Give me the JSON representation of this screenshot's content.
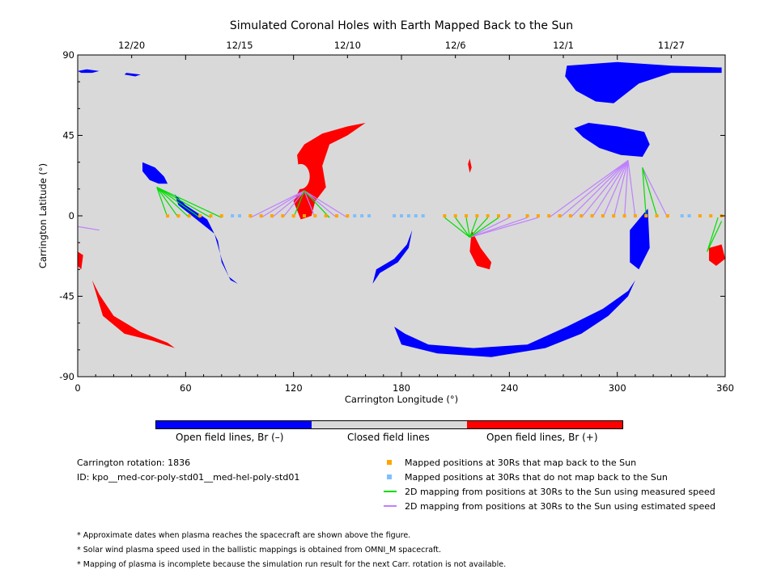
{
  "chart_data": {
    "type": "map",
    "title": "Simulated Coronal Holes with Earth Mapped Back to the Sun",
    "xlabel": "Carrington Longitude (°)",
    "ylabel": "Carrington Latitude (°)",
    "xlim": [
      0,
      360
    ],
    "ylim": [
      -90,
      90
    ],
    "x_ticks": [
      0,
      60,
      120,
      180,
      240,
      300,
      360
    ],
    "y_ticks": [
      -90,
      -45,
      0,
      45,
      90
    ],
    "date_ticks": [
      {
        "label": "12/20",
        "lon": 30
      },
      {
        "label": "12/15",
        "lon": 90
      },
      {
        "label": "12/10",
        "lon": 150
      },
      {
        "label": "12/6",
        "lon": 210
      },
      {
        "label": "12/1",
        "lon": 270
      },
      {
        "label": "11/27",
        "lon": 330
      }
    ],
    "background_color": "#d9d9d9",
    "colors": {
      "negative": "#0000ff",
      "closed": "#d9d9d9",
      "positive": "#ff0000",
      "mapped": "#ffa500",
      "unmapped": "#7fbfff",
      "measured": "#00dd00",
      "estimated": "#bf80ff"
    },
    "coronal_holes": [
      {
        "polarity": "negative",
        "points": [
          [
            272,
            84
          ],
          [
            300,
            86
          ],
          [
            330,
            84
          ],
          [
            358,
            83
          ],
          [
            358,
            80
          ],
          [
            330,
            80
          ],
          [
            312,
            74
          ],
          [
            298,
            63
          ],
          [
            288,
            64
          ],
          [
            277,
            70
          ],
          [
            271,
            78
          ]
        ]
      },
      {
        "polarity": "negative",
        "points": [
          [
            0,
            81
          ],
          [
            5,
            82
          ],
          [
            12,
            81
          ],
          [
            8,
            80
          ],
          [
            2,
            80
          ]
        ]
      },
      {
        "polarity": "negative",
        "points": [
          [
            27,
            80
          ],
          [
            35,
            79
          ],
          [
            32,
            78
          ],
          [
            26,
            79
          ]
        ]
      },
      {
        "polarity": "negative",
        "points": [
          [
            276,
            49
          ],
          [
            284,
            52
          ],
          [
            300,
            50
          ],
          [
            315,
            47
          ],
          [
            318,
            40
          ],
          [
            314,
            33
          ],
          [
            302,
            34
          ],
          [
            290,
            38
          ],
          [
            281,
            44
          ]
        ]
      },
      {
        "polarity": "negative",
        "points": [
          [
            36,
            30
          ],
          [
            43,
            27
          ],
          [
            48,
            22
          ],
          [
            50,
            18
          ],
          [
            45,
            18
          ],
          [
            40,
            20
          ],
          [
            36,
            25
          ]
        ]
      },
      {
        "polarity": "negative",
        "points": [
          [
            54,
            12
          ],
          [
            60,
            6
          ],
          [
            72,
            -2
          ],
          [
            78,
            -14
          ],
          [
            80,
            -26
          ],
          [
            85,
            -36
          ],
          [
            89,
            -38
          ],
          [
            84,
            -34
          ],
          [
            80,
            -24
          ],
          [
            76,
            -10
          ],
          [
            66,
            -2
          ],
          [
            56,
            6
          ]
        ]
      },
      {
        "polarity": "negative",
        "points": [
          [
            164,
            -38
          ],
          [
            168,
            -32
          ],
          [
            178,
            -26
          ],
          [
            184,
            -18
          ],
          [
            186,
            -8
          ],
          [
            183,
            -16
          ],
          [
            176,
            -24
          ],
          [
            166,
            -30
          ]
        ]
      },
      {
        "polarity": "negative",
        "points": [
          [
            176,
            -62
          ],
          [
            180,
            -72
          ],
          [
            200,
            -77
          ],
          [
            230,
            -79
          ],
          [
            260,
            -74
          ],
          [
            280,
            -66
          ],
          [
            295,
            -56
          ],
          [
            306,
            -45
          ],
          [
            310,
            -36
          ],
          [
            306,
            -42
          ],
          [
            292,
            -52
          ],
          [
            272,
            -62
          ],
          [
            250,
            -72
          ],
          [
            220,
            -74
          ],
          [
            195,
            -72
          ],
          [
            182,
            -66
          ]
        ]
      },
      {
        "polarity": "negative",
        "points": [
          [
            307,
            -8
          ],
          [
            312,
            -2
          ],
          [
            317,
            4
          ],
          [
            318,
            -18
          ],
          [
            312,
            -30
          ],
          [
            307,
            -26
          ]
        ]
      },
      {
        "polarity": "positive",
        "points": [
          [
            122,
            34
          ],
          [
            126,
            40
          ],
          [
            136,
            46
          ],
          [
            150,
            50
          ],
          [
            160,
            52
          ],
          [
            150,
            45
          ],
          [
            140,
            40
          ],
          [
            136,
            28
          ],
          [
            138,
            16
          ],
          [
            132,
            8
          ],
          [
            130,
            0
          ],
          [
            124,
            -2
          ],
          [
            120,
            8
          ],
          [
            124,
            16
          ]
        ]
      },
      {
        "polarity": "positive",
        "points": [
          [
            219,
            -8
          ],
          [
            224,
            -18
          ],
          [
            230,
            -26
          ],
          [
            229,
            -30
          ],
          [
            222,
            -28
          ],
          [
            218,
            -20
          ]
        ]
      },
      {
        "polarity": "positive",
        "points": [
          [
            218,
            32
          ],
          [
            219,
            27
          ],
          [
            218,
            24
          ],
          [
            217,
            29
          ]
        ]
      },
      {
        "polarity": "positive",
        "points": [
          [
            8,
            -36
          ],
          [
            14,
            -56
          ],
          [
            26,
            -66
          ],
          [
            42,
            -70
          ],
          [
            54,
            -74
          ],
          [
            50,
            -71
          ],
          [
            35,
            -65
          ],
          [
            20,
            -56
          ],
          [
            12,
            -44
          ]
        ]
      },
      {
        "polarity": "positive",
        "points": [
          [
            0,
            -20
          ],
          [
            3,
            -22
          ],
          [
            2,
            -30
          ],
          [
            0,
            -28
          ]
        ]
      },
      {
        "polarity": "positive",
        "points": [
          [
            351,
            -18
          ],
          [
            358,
            -16
          ],
          [
            360,
            -24
          ],
          [
            355,
            -28
          ],
          [
            351,
            -25
          ]
        ]
      }
    ],
    "holes_closed": [
      {
        "center": [
          124,
          22
        ],
        "r": [
          5,
          7
        ]
      }
    ],
    "mapped_points_lon": [
      50,
      56,
      62,
      68,
      74,
      80,
      96,
      102,
      108,
      114,
      120,
      126,
      132,
      138,
      144,
      150,
      204,
      210,
      216,
      222,
      228,
      234,
      240,
      250,
      256,
      262,
      268,
      274,
      280,
      286,
      292,
      298,
      304,
      310,
      316,
      322,
      328,
      346,
      352,
      358
    ],
    "unmapped_points_lon": [
      86,
      90,
      154,
      158,
      162,
      176,
      180,
      184,
      188,
      192,
      336,
      340
    ],
    "measured_lines": [
      {
        "from": [
          44,
          16
        ],
        "to": [
          50,
          -1
        ]
      },
      {
        "from": [
          44,
          16
        ],
        "to": [
          56,
          -1
        ]
      },
      {
        "from": [
          44,
          16
        ],
        "to": [
          62,
          -1
        ]
      },
      {
        "from": [
          44,
          16
        ],
        "to": [
          68,
          -1
        ]
      },
      {
        "from": [
          44,
          16
        ],
        "to": [
          74,
          -1
        ]
      },
      {
        "from": [
          44,
          16
        ],
        "to": [
          80,
          -1
        ]
      },
      {
        "from": [
          126,
          14
        ],
        "to": [
          120,
          -1
        ]
      },
      {
        "from": [
          126,
          14
        ],
        "to": [
          140,
          -1
        ]
      },
      {
        "from": [
          218,
          -12
        ],
        "to": [
          204,
          -1
        ]
      },
      {
        "from": [
          218,
          -12
        ],
        "to": [
          210,
          -1
        ]
      },
      {
        "from": [
          218,
          -12
        ],
        "to": [
          216,
          -1
        ]
      },
      {
        "from": [
          218,
          -12
        ],
        "to": [
          222,
          -1
        ]
      },
      {
        "from": [
          218,
          -12
        ],
        "to": [
          228,
          -1
        ]
      },
      {
        "from": [
          218,
          -12
        ],
        "to": [
          234,
          -1
        ]
      },
      {
        "from": [
          314,
          27
        ],
        "to": [
          316,
          0
        ]
      },
      {
        "from": [
          314,
          27
        ],
        "to": [
          322,
          0
        ]
      },
      {
        "from": [
          350,
          -20
        ],
        "to": [
          356,
          -1
        ]
      },
      {
        "from": [
          350,
          -20
        ],
        "to": [
          358,
          -3
        ]
      }
    ],
    "estimated_lines": [
      {
        "from": [
          126,
          14
        ],
        "to": [
          96,
          -1
        ]
      },
      {
        "from": [
          126,
          14
        ],
        "to": [
          102,
          -1
        ]
      },
      {
        "from": [
          126,
          14
        ],
        "to": [
          108,
          -1
        ]
      },
      {
        "from": [
          126,
          14
        ],
        "to": [
          114,
          -1
        ]
      },
      {
        "from": [
          126,
          14
        ],
        "to": [
          132,
          -1
        ]
      },
      {
        "from": [
          126,
          14
        ],
        "to": [
          144,
          -1
        ]
      },
      {
        "from": [
          126,
          14
        ],
        "to": [
          150,
          -1
        ]
      },
      {
        "from": [
          218,
          -12
        ],
        "to": [
          240,
          -1
        ]
      },
      {
        "from": [
          218,
          -12
        ],
        "to": [
          250,
          -1
        ]
      },
      {
        "from": [
          218,
          -12
        ],
        "to": [
          256,
          -1
        ]
      },
      {
        "from": [
          306,
          31
        ],
        "to": [
          262,
          -1
        ]
      },
      {
        "from": [
          306,
          31
        ],
        "to": [
          268,
          -1
        ]
      },
      {
        "from": [
          306,
          31
        ],
        "to": [
          274,
          -1
        ]
      },
      {
        "from": [
          306,
          31
        ],
        "to": [
          280,
          -1
        ]
      },
      {
        "from": [
          306,
          31
        ],
        "to": [
          286,
          -1
        ]
      },
      {
        "from": [
          306,
          31
        ],
        "to": [
          292,
          -1
        ]
      },
      {
        "from": [
          306,
          31
        ],
        "to": [
          298,
          -1
        ]
      },
      {
        "from": [
          306,
          31
        ],
        "to": [
          304,
          -1
        ]
      },
      {
        "from": [
          306,
          31
        ],
        "to": [
          310,
          -1
        ]
      },
      {
        "from": [
          314,
          27
        ],
        "to": [
          328,
          -1
        ]
      },
      {
        "from": [
          0,
          -6
        ],
        "to": [
          12,
          -8
        ]
      }
    ]
  },
  "colorbar": {
    "labels": [
      "Open field lines, Br (–)",
      "Closed field lines",
      "Open field lines, Br (+)"
    ]
  },
  "info": {
    "carrington_rotation": "Carrington rotation: 1836",
    "model_id": "ID: kpo__med-cor-poly-std01__med-hel-poly-std01"
  },
  "legend": [
    {
      "symbol": "mapped",
      "label": "Mapped positions at 30Rs that map back to the Sun"
    },
    {
      "symbol": "unmapped",
      "label": "Mapped positions at 30Rs that do not map back to the Sun"
    },
    {
      "symbol": "measured",
      "label": "2D mapping from positions at 30Rs to the Sun using measured speed"
    },
    {
      "symbol": "estimated",
      "label": "2D mapping from positions at 30Rs to the Sun using estimated speed"
    }
  ],
  "notes": [
    "* Approximate dates when plasma reaches the spacecraft are shown above the figure.",
    "* Solar wind plasma speed used in the ballistic mappings is obtained from OMNI_M spacecraft.",
    "* Mapping of plasma is incomplete because the simulation run result for the next Carr. rotation is not available."
  ]
}
